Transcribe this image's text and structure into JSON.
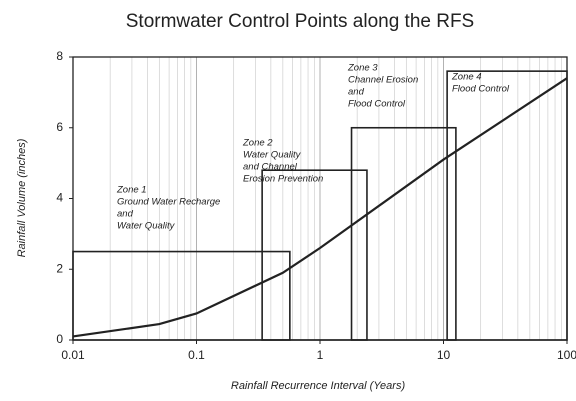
{
  "chart_data": {
    "type": "line",
    "title": "Stormwater Control Points along the RFS",
    "x_label": "Rainfall Recurrence Interval (Years)",
    "y_label": "Rainfall Volume (inches)",
    "x_scale": "log",
    "x": [
      0.01,
      0.05,
      0.1,
      0.5,
      1,
      10,
      100
    ],
    "series": [
      {
        "color": "#222222",
        "values": [
          0.1,
          0.45,
          0.75,
          1.9,
          2.6,
          5.1,
          7.4
        ]
      }
    ],
    "zones": [
      {
        "lines": [
          "Zone 1",
          "Ground Water Recharge",
          "and",
          "Water Quality"
        ],
        "x_start": 0.01,
        "x_end": 0.57,
        "height": 2.5
      },
      {
        "lines": [
          "Zone 2",
          "Water Quality",
          "and Channel",
          "Erosion Prevention"
        ],
        "x_start": 0.34,
        "x_end": 2.4,
        "height": 4.8
      },
      {
        "lines": [
          "Zone 3",
          "Channel Erosion",
          "and",
          "Flood Control"
        ],
        "x_start": 1.8,
        "x_end": 12.6,
        "height": 6
      },
      {
        "lines": [
          "Zone 4",
          "Flood Control"
        ],
        "x_start": 10.7,
        "x_end": 100,
        "height": 7.6
      }
    ],
    "xlim": [
      0.01,
      100
    ],
    "xticks": [
      0.01,
      0.1,
      1,
      10,
      100
    ],
    "ylim": [
      0,
      8
    ],
    "yticks": [
      0,
      2,
      4,
      6,
      8
    ],
    "grid": true
  }
}
